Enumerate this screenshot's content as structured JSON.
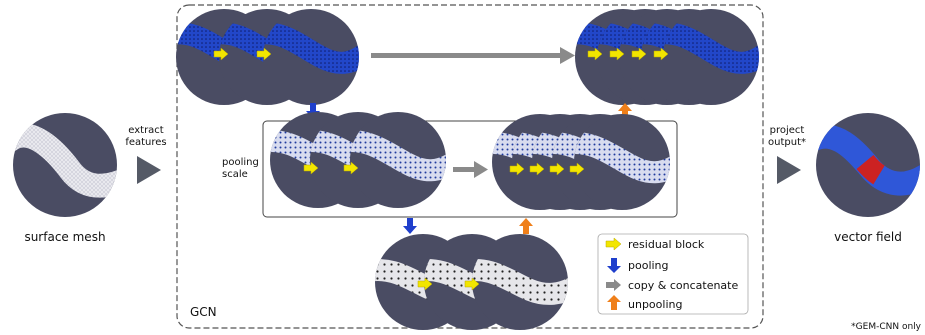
{
  "labels": {
    "surface_mesh": "surface mesh",
    "extract_line1": "extract",
    "extract_line2": "features",
    "pooling_line1": "pooling",
    "pooling_line2": "scale",
    "gcn": "GCN",
    "project_line1": "project",
    "project_line2": "output*",
    "vector_field": "vector field",
    "footnote": "*GEM-CNN only"
  },
  "legend": {
    "items": [
      {
        "label": "residual block",
        "icon": "yellow-arrow-right-icon",
        "color": "#f2e600"
      },
      {
        "label": "pooling",
        "icon": "blue-arrow-down-icon",
        "color": "#1f3fcc"
      },
      {
        "label": "copy & concatenate",
        "icon": "gray-arrow-right-icon",
        "color": "#8a8a8a"
      },
      {
        "label": "unpooling",
        "icon": "orange-arrow-up-icon",
        "color": "#ef7f1a"
      }
    ]
  },
  "colors": {
    "disc_bg": "#4a4c63",
    "mesh_white": "#e9e9ee",
    "feature_blue": "#2247c9",
    "output_blue": "#2f57d8",
    "output_red": "#cc2222",
    "border_gray": "#555555"
  }
}
